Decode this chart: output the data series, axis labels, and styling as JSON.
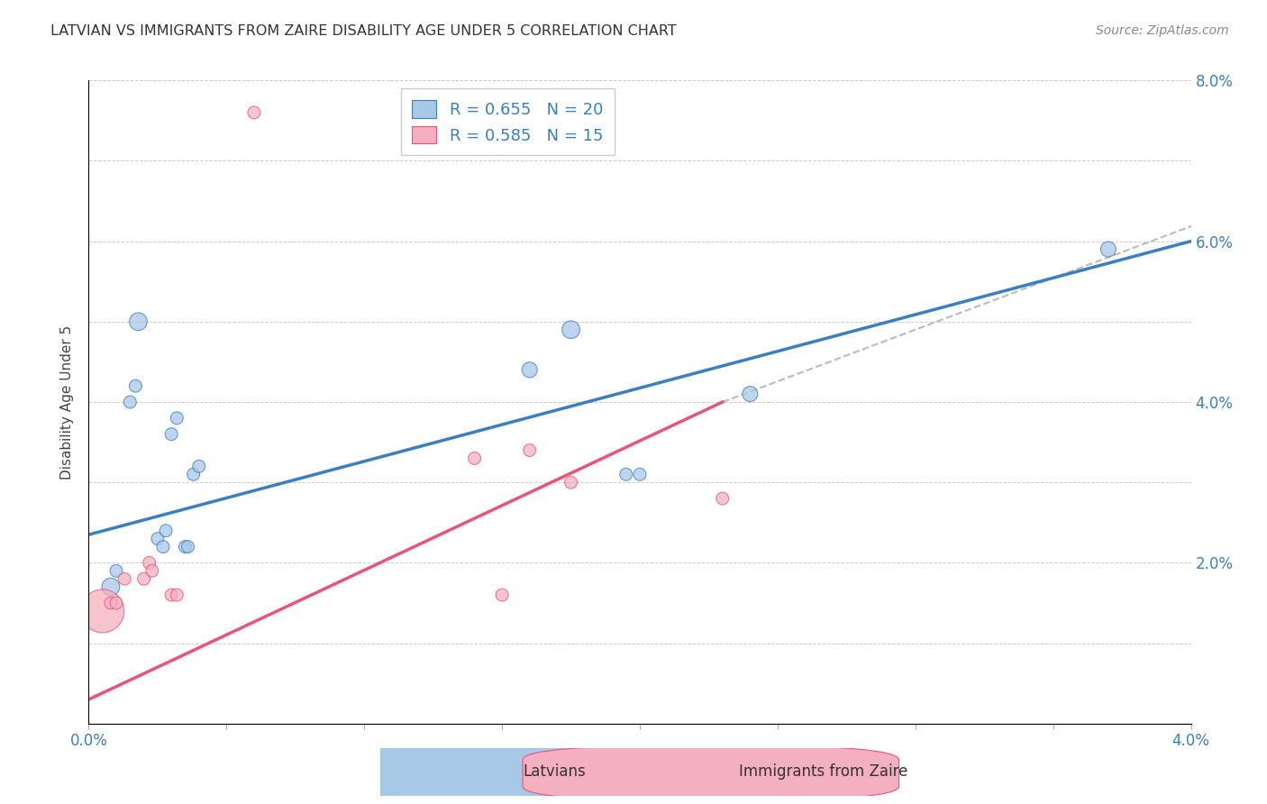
{
  "title": "LATVIAN VS IMMIGRANTS FROM ZAIRE DISABILITY AGE UNDER 5 CORRELATION CHART",
  "source": "Source: ZipAtlas.com",
  "ylabel": "Disability Age Under 5",
  "legend_label1": "Latvians",
  "legend_label2": "Immigrants from Zaire",
  "r1": 0.655,
  "n1": 20,
  "r2": 0.585,
  "n2": 15,
  "xlim": [
    0.0,
    0.04
  ],
  "ylim": [
    0.0,
    0.08
  ],
  "blue_color": "#a8c8e8",
  "pink_color": "#f4b0c0",
  "blue_line_color": "#3a7fc1",
  "pink_line_color": "#e8547a",
  "gray_dash_color": "#bbbbbb",
  "latvian_points": [
    [
      0.0008,
      0.017
    ],
    [
      0.001,
      0.019
    ],
    [
      0.0015,
      0.04
    ],
    [
      0.0017,
      0.042
    ],
    [
      0.0018,
      0.05
    ],
    [
      0.0025,
      0.023
    ],
    [
      0.0027,
      0.022
    ],
    [
      0.0028,
      0.024
    ],
    [
      0.003,
      0.036
    ],
    [
      0.0032,
      0.038
    ],
    [
      0.0035,
      0.022
    ],
    [
      0.0036,
      0.022
    ],
    [
      0.0038,
      0.031
    ],
    [
      0.004,
      0.032
    ],
    [
      0.016,
      0.044
    ],
    [
      0.0175,
      0.049
    ],
    [
      0.0195,
      0.031
    ],
    [
      0.02,
      0.031
    ],
    [
      0.024,
      0.041
    ],
    [
      0.037,
      0.059
    ]
  ],
  "latvian_sizes": [
    200,
    100,
    100,
    100,
    200,
    100,
    100,
    100,
    100,
    100,
    100,
    100,
    100,
    100,
    150,
    200,
    100,
    100,
    150,
    150
  ],
  "zaire_points": [
    [
      0.0005,
      0.014
    ],
    [
      0.0008,
      0.015
    ],
    [
      0.001,
      0.015
    ],
    [
      0.0013,
      0.018
    ],
    [
      0.002,
      0.018
    ],
    [
      0.0022,
      0.02
    ],
    [
      0.0023,
      0.019
    ],
    [
      0.003,
      0.016
    ],
    [
      0.0032,
      0.016
    ],
    [
      0.006,
      0.076
    ],
    [
      0.014,
      0.033
    ],
    [
      0.015,
      0.016
    ],
    [
      0.016,
      0.034
    ],
    [
      0.0175,
      0.03
    ],
    [
      0.023,
      0.028
    ]
  ],
  "zaire_sizes": [
    1200,
    100,
    100,
    100,
    100,
    100,
    100,
    100,
    100,
    100,
    100,
    100,
    100,
    100,
    100
  ],
  "blue_line": [
    [
      0.0,
      0.0235
    ],
    [
      0.04,
      0.06
    ]
  ],
  "pink_line": [
    [
      0.0,
      0.003
    ],
    [
      0.023,
      0.04
    ]
  ],
  "gray_dash_line": [
    [
      0.023,
      0.04
    ],
    [
      0.044,
      0.067
    ]
  ]
}
